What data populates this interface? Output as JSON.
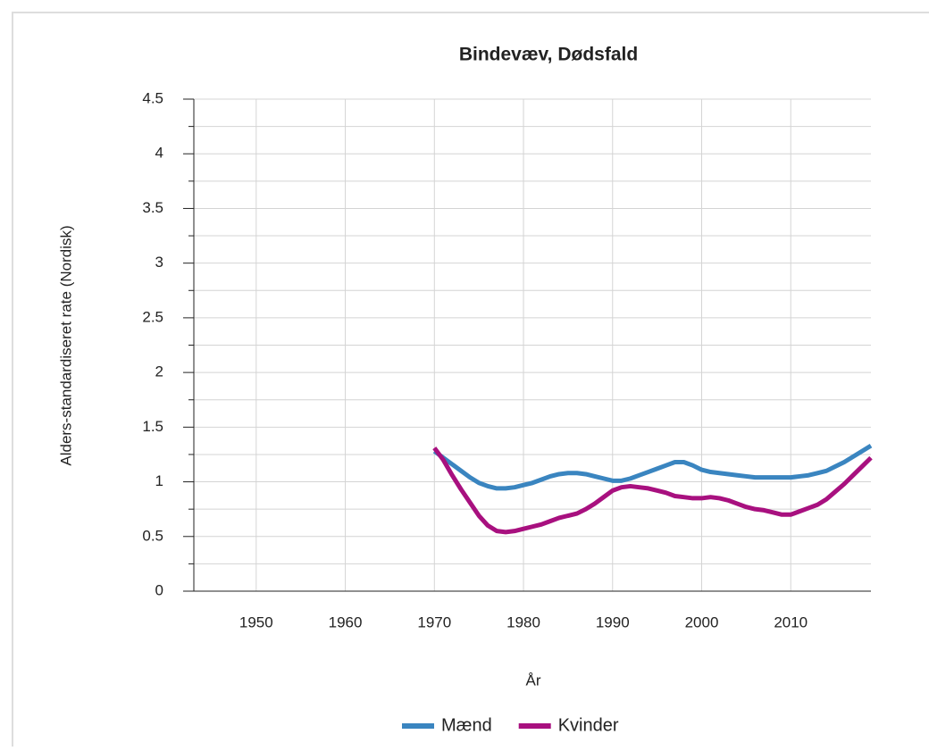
{
  "chart_data": {
    "type": "line",
    "title": "Bindevæv, Dødsfald",
    "xlabel": "År",
    "ylabel": "Alders-standardiseret rate (Nordisk)",
    "x": [
      1970,
      1971,
      1972,
      1973,
      1974,
      1975,
      1976,
      1977,
      1978,
      1979,
      1980,
      1981,
      1982,
      1983,
      1984,
      1985,
      1986,
      1987,
      1988,
      1989,
      1990,
      1991,
      1992,
      1993,
      1994,
      1995,
      1996,
      1997,
      1998,
      1999,
      2000,
      2001,
      2002,
      2003,
      2004,
      2005,
      2006,
      2007,
      2008,
      2009,
      2010,
      2011,
      2012,
      2013,
      2014,
      2015,
      2016,
      2017,
      2018,
      2019
    ],
    "series": [
      {
        "name": "Mænd",
        "color": "#3a85c0",
        "values": [
          1.28,
          1.22,
          1.16,
          1.1,
          1.04,
          0.99,
          0.96,
          0.94,
          0.94,
          0.95,
          0.97,
          0.99,
          1.02,
          1.05,
          1.07,
          1.08,
          1.08,
          1.07,
          1.05,
          1.03,
          1.01,
          1.01,
          1.03,
          1.06,
          1.09,
          1.12,
          1.15,
          1.18,
          1.18,
          1.15,
          1.11,
          1.09,
          1.08,
          1.07,
          1.06,
          1.05,
          1.04,
          1.04,
          1.04,
          1.04,
          1.04,
          1.05,
          1.06,
          1.08,
          1.1,
          1.14,
          1.18,
          1.23,
          1.28,
          1.33
        ]
      },
      {
        "name": "Kvinder",
        "color": "#a8107f",
        "values": [
          1.31,
          1.2,
          1.06,
          0.93,
          0.81,
          0.69,
          0.6,
          0.55,
          0.54,
          0.55,
          0.57,
          0.59,
          0.61,
          0.64,
          0.67,
          0.69,
          0.71,
          0.75,
          0.8,
          0.86,
          0.92,
          0.95,
          0.96,
          0.95,
          0.94,
          0.92,
          0.9,
          0.87,
          0.86,
          0.85,
          0.85,
          0.86,
          0.85,
          0.83,
          0.8,
          0.77,
          0.75,
          0.74,
          0.72,
          0.7,
          0.7,
          0.73,
          0.76,
          0.79,
          0.84,
          0.91,
          0.98,
          1.06,
          1.14,
          1.22
        ]
      }
    ],
    "xlim": [
      1943,
      2019
    ],
    "xticks": [
      1950,
      1960,
      1970,
      1980,
      1990,
      2000,
      2010
    ],
    "ylim": [
      0,
      4.5
    ],
    "yticks": [
      0,
      0.5,
      1,
      1.5,
      2,
      2.5,
      3,
      3.5,
      4,
      4.5
    ],
    "yminorticks": [
      0.25,
      0.75,
      1.25,
      1.75,
      2.25,
      2.75,
      3.25,
      3.75,
      4.25
    ],
    "grid": true,
    "legend": "bottom"
  }
}
